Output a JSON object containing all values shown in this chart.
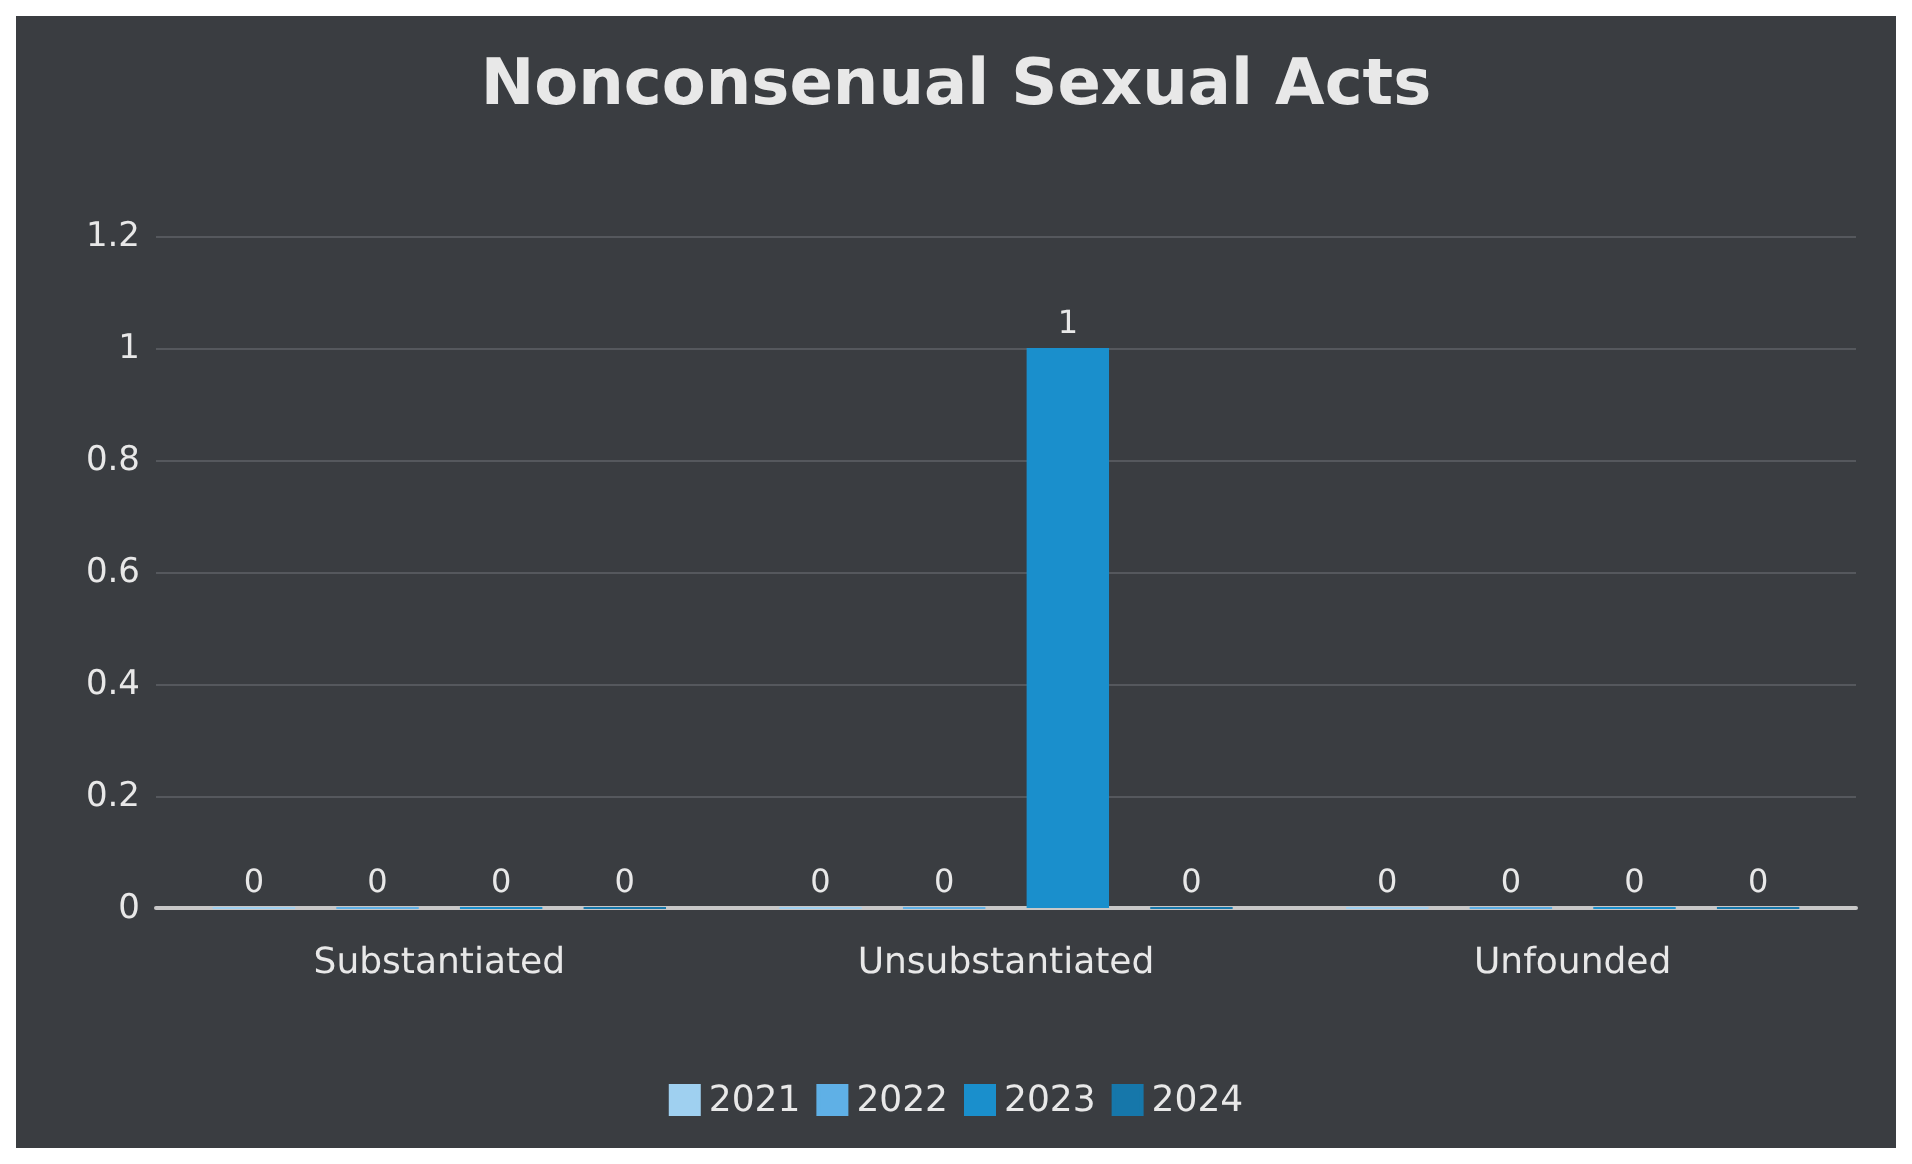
{
  "chart_data": {
    "type": "bar",
    "title": "Nonconsenual Sexual Acts",
    "categories": [
      "Substantiated",
      "Unsubstantiated",
      "Unfounded"
    ],
    "series": [
      {
        "name": "2021",
        "color": "#9fd0f0",
        "values": [
          0,
          0,
          0
        ]
      },
      {
        "name": "2022",
        "color": "#5fb0e6",
        "values": [
          0,
          0,
          0
        ]
      },
      {
        "name": "2023",
        "color": "#1a8fcc",
        "values": [
          0,
          1,
          0
        ]
      },
      {
        "name": "2024",
        "color": "#1677aa",
        "values": [
          0,
          0,
          0
        ]
      }
    ],
    "ylim": [
      0,
      1.2
    ],
    "yticks": [
      0,
      0.2,
      0.4,
      0.6,
      0.8,
      1,
      1.2
    ],
    "grid": "y",
    "legend": "bottom",
    "data_labels": true
  }
}
